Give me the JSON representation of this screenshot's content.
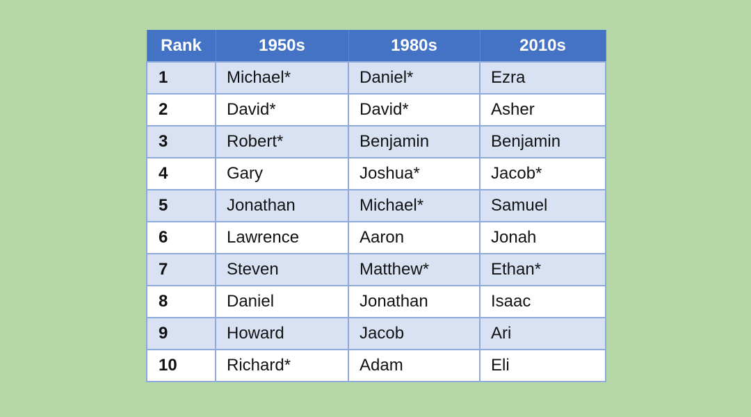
{
  "table": {
    "headers": [
      "Rank",
      "1950s",
      "1980s",
      "2010s"
    ],
    "rows": [
      {
        "rank": "1",
        "c1950s": "Michael*",
        "c1980s": "Daniel*",
        "c2010s": "Ezra"
      },
      {
        "rank": "2",
        "c1950s": "David*",
        "c1980s": "David*",
        "c2010s": "Asher"
      },
      {
        "rank": "3",
        "c1950s": "Robert*",
        "c1980s": "Benjamin",
        "c2010s": "Benjamin"
      },
      {
        "rank": "4",
        "c1950s": "Gary",
        "c1980s": "Joshua*",
        "c2010s": "Jacob*"
      },
      {
        "rank": "5",
        "c1950s": "Jonathan",
        "c1980s": "Michael*",
        "c2010s": "Samuel"
      },
      {
        "rank": "6",
        "c1950s": "Lawrence",
        "c1980s": "Aaron",
        "c2010s": "Jonah"
      },
      {
        "rank": "7",
        "c1950s": "Steven",
        "c1980s": "Matthew*",
        "c2010s": "Ethan*"
      },
      {
        "rank": "8",
        "c1950s": "Daniel",
        "c1980s": "Jonathan",
        "c2010s": "Isaac"
      },
      {
        "rank": "9",
        "c1950s": "Howard",
        "c1980s": "Jacob",
        "c2010s": "Ari"
      },
      {
        "rank": "10",
        "c1950s": "Richard*",
        "c1980s": "Adam",
        "c2010s": "Eli"
      }
    ]
  },
  "colors": {
    "background": "#b6d7a8",
    "header": "#4472c4",
    "band": "#d9e2f3",
    "border": "#8eaadb"
  }
}
